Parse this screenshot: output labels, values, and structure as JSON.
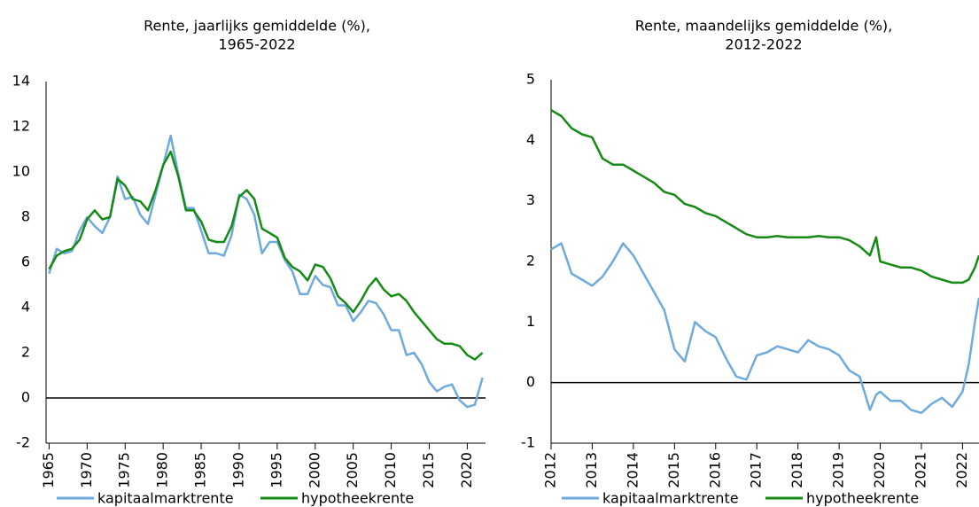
{
  "chart_data": [
    {
      "type": "line",
      "title": [
        "Rente, jaarlijks gemiddelde (%),",
        "1965-2022"
      ],
      "x": [
        1965,
        1966,
        1967,
        1968,
        1969,
        1970,
        1971,
        1972,
        1973,
        1974,
        1975,
        1976,
        1977,
        1978,
        1979,
        1980,
        1981,
        1982,
        1983,
        1984,
        1985,
        1986,
        1987,
        1988,
        1989,
        1990,
        1991,
        1992,
        1993,
        1994,
        1995,
        1996,
        1997,
        1998,
        1999,
        2000,
        2001,
        2002,
        2003,
        2004,
        2005,
        2006,
        2007,
        2008,
        2009,
        2010,
        2011,
        2012,
        2013,
        2014,
        2015,
        2016,
        2017,
        2018,
        2019,
        2020,
        2021,
        2022
      ],
      "series": [
        {
          "name": "kapitaalmarktrente",
          "color": "#6faadd",
          "values": [
            5.5,
            6.6,
            6.4,
            6.5,
            7.4,
            8.0,
            7.6,
            7.3,
            8.0,
            9.8,
            8.8,
            8.9,
            8.1,
            7.7,
            9.0,
            10.3,
            11.6,
            9.9,
            8.4,
            8.4,
            7.4,
            6.4,
            6.4,
            6.3,
            7.2,
            9.0,
            8.8,
            8.1,
            6.4,
            6.9,
            6.9,
            6.1,
            5.6,
            4.6,
            4.6,
            5.4,
            5.0,
            4.9,
            4.1,
            4.1,
            3.4,
            3.8,
            4.3,
            4.2,
            3.7,
            3.0,
            3.0,
            1.9,
            2.0,
            1.5,
            0.7,
            0.3,
            0.5,
            0.6,
            -0.1,
            -0.4,
            -0.3,
            0.9
          ]
        },
        {
          "name": "hypotheekrente",
          "color": "#158a15",
          "values": [
            5.7,
            6.3,
            6.5,
            6.6,
            7.0,
            7.9,
            8.3,
            7.9,
            8.0,
            9.7,
            9.4,
            8.8,
            8.7,
            8.3,
            9.2,
            10.3,
            10.9,
            9.8,
            8.3,
            8.3,
            7.8,
            7.0,
            6.9,
            6.9,
            7.6,
            8.9,
            9.2,
            8.8,
            7.5,
            7.3,
            7.1,
            6.2,
            5.8,
            5.6,
            5.2,
            5.9,
            5.8,
            5.3,
            4.5,
            4.2,
            3.8,
            4.3,
            4.9,
            5.3,
            4.8,
            4.5,
            4.6,
            4.3,
            3.8,
            3.4,
            3.0,
            2.6,
            2.4,
            2.4,
            2.3,
            1.9,
            1.7,
            2.0
          ]
        }
      ],
      "xlim": [
        1964.6,
        2022.4
      ],
      "xticks": [
        1965,
        1970,
        1975,
        1980,
        1985,
        1990,
        1995,
        2000,
        2005,
        2010,
        2015,
        2020
      ],
      "ylim": [
        -2,
        14
      ],
      "yticks": [
        -2,
        0,
        2,
        4,
        6,
        8,
        10,
        12,
        14
      ]
    },
    {
      "type": "line",
      "title": [
        "Rente, maandelijks gemiddelde (%),",
        "2012-2022"
      ],
      "x": [
        2012.0,
        2012.25,
        2012.5,
        2012.75,
        2013.0,
        2013.25,
        2013.5,
        2013.75,
        2014.0,
        2014.25,
        2014.5,
        2014.75,
        2015.0,
        2015.25,
        2015.5,
        2015.75,
        2016.0,
        2016.25,
        2016.5,
        2016.75,
        2017.0,
        2017.25,
        2017.5,
        2017.75,
        2018.0,
        2018.25,
        2018.5,
        2018.75,
        2019.0,
        2019.25,
        2019.5,
        2019.75,
        2019.9,
        2020.0,
        2020.25,
        2020.5,
        2020.75,
        2021.0,
        2021.25,
        2021.5,
        2021.75,
        2022.0,
        2022.15,
        2022.3,
        2022.4
      ],
      "series": [
        {
          "name": "kapitaalmarktrente",
          "color": "#6faadd",
          "values": [
            2.2,
            2.3,
            1.8,
            1.7,
            1.6,
            1.75,
            2.0,
            2.3,
            2.1,
            1.8,
            1.5,
            1.2,
            0.55,
            0.35,
            1.0,
            0.85,
            0.75,
            0.4,
            0.1,
            0.05,
            0.45,
            0.5,
            0.6,
            0.55,
            0.5,
            0.7,
            0.6,
            0.55,
            0.45,
            0.2,
            0.1,
            -0.45,
            -0.2,
            -0.15,
            -0.3,
            -0.3,
            -0.45,
            -0.5,
            -0.35,
            -0.25,
            -0.4,
            -0.15,
            0.3,
            1.0,
            1.4
          ]
        },
        {
          "name": "hypotheekrente",
          "color": "#158a15",
          "values": [
            4.5,
            4.4,
            4.2,
            4.1,
            4.05,
            3.7,
            3.6,
            3.6,
            3.5,
            3.4,
            3.3,
            3.15,
            3.1,
            2.95,
            2.9,
            2.8,
            2.75,
            2.65,
            2.55,
            2.45,
            2.4,
            2.4,
            2.42,
            2.4,
            2.4,
            2.4,
            2.42,
            2.4,
            2.4,
            2.35,
            2.25,
            2.1,
            2.4,
            2.0,
            1.95,
            1.9,
            1.9,
            1.85,
            1.75,
            1.7,
            1.65,
            1.65,
            1.7,
            1.9,
            2.1
          ]
        }
      ],
      "xlim": [
        2012,
        2022.4
      ],
      "xticks": [
        2012,
        2013,
        2014,
        2015,
        2016,
        2017,
        2018,
        2019,
        2020,
        2021,
        2022
      ],
      "ylim": [
        -1,
        5
      ],
      "yticks": [
        -1,
        0,
        1,
        2,
        3,
        4,
        5
      ]
    }
  ]
}
